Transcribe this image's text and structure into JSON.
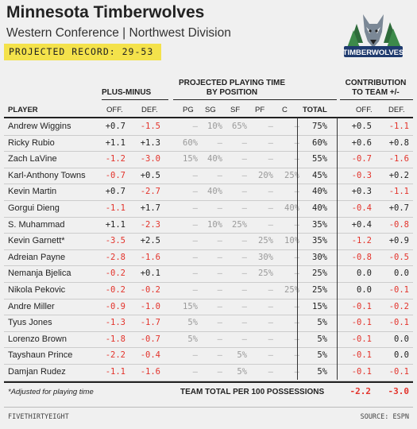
{
  "header": {
    "title": "Minnesota Timberwolves",
    "subtitle": "Western Conference | Northwest Division",
    "record": "PROJECTED RECORD: 29-53",
    "logo_text": "TIMBERWOLVES"
  },
  "groups": {
    "plus_minus": "PLUS-MINUS",
    "playing_time_1": "PROJECTED PLAYING TIME",
    "playing_time_2": "BY POSITION",
    "contribution_1": "CONTRIBUTION",
    "contribution_2": "TO TEAM +/-"
  },
  "columns": {
    "player": "PLAYER",
    "off": "OFF.",
    "def": "DEF.",
    "pg": "PG",
    "sg": "SG",
    "sf": "SF",
    "pf": "PF",
    "c": "C",
    "total": "TOTAL",
    "c_off": "OFF.",
    "c_def": "DEF."
  },
  "rows": [
    {
      "player": "Andrew Wiggins",
      "off": "+0.7",
      "def": "-1.5",
      "pg": "—",
      "sg": "10%",
      "sf": "65%",
      "pf": "—",
      "c": "—",
      "total": "75%",
      "c_off": "+0.5",
      "c_def": "-1.1"
    },
    {
      "player": "Ricky Rubio",
      "off": "+1.1",
      "def": "+1.3",
      "pg": "60%",
      "sg": "—",
      "sf": "—",
      "pf": "—",
      "c": "—",
      "total": "60%",
      "c_off": "+0.6",
      "c_def": "+0.8"
    },
    {
      "player": "Zach LaVine",
      "off": "-1.2",
      "def": "-3.0",
      "pg": "15%",
      "sg": "40%",
      "sf": "—",
      "pf": "—",
      "c": "—",
      "total": "55%",
      "c_off": "-0.7",
      "c_def": "-1.6"
    },
    {
      "player": "Karl-Anthony Towns",
      "off": "-0.7",
      "def": "+0.5",
      "pg": "—",
      "sg": "—",
      "sf": "—",
      "pf": "20%",
      "c": "25%",
      "total": "45%",
      "c_off": "-0.3",
      "c_def": "+0.2"
    },
    {
      "player": "Kevin Martin",
      "off": "+0.7",
      "def": "-2.7",
      "pg": "—",
      "sg": "40%",
      "sf": "—",
      "pf": "—",
      "c": "—",
      "total": "40%",
      "c_off": "+0.3",
      "c_def": "-1.1"
    },
    {
      "player": "Gorgui Dieng",
      "off": "-1.1",
      "def": "+1.7",
      "pg": "—",
      "sg": "—",
      "sf": "—",
      "pf": "—",
      "c": "40%",
      "total": "40%",
      "c_off": "-0.4",
      "c_def": "+0.7"
    },
    {
      "player": "S. Muhammad",
      "off": "+1.1",
      "def": "-2.3",
      "pg": "—",
      "sg": "10%",
      "sf": "25%",
      "pf": "—",
      "c": "—",
      "total": "35%",
      "c_off": "+0.4",
      "c_def": "-0.8"
    },
    {
      "player": "Kevin Garnett*",
      "off": "-3.5",
      "def": "+2.5",
      "pg": "—",
      "sg": "—",
      "sf": "—",
      "pf": "25%",
      "c": "10%",
      "total": "35%",
      "c_off": "-1.2",
      "c_def": "+0.9"
    },
    {
      "player": "Adreian Payne",
      "off": "-2.8",
      "def": "-1.6",
      "pg": "—",
      "sg": "—",
      "sf": "—",
      "pf": "30%",
      "c": "—",
      "total": "30%",
      "c_off": "-0.8",
      "c_def": "-0.5"
    },
    {
      "player": "Nemanja Bjelica",
      "off": "-0.2",
      "def": "+0.1",
      "pg": "—",
      "sg": "—",
      "sf": "—",
      "pf": "25%",
      "c": "—",
      "total": "25%",
      "c_off": "0.0",
      "c_def": "0.0"
    },
    {
      "player": "Nikola Pekovic",
      "off": "-0.2",
      "def": "-0.2",
      "pg": "—",
      "sg": "—",
      "sf": "—",
      "pf": "—",
      "c": "25%",
      "total": "25%",
      "c_off": "0.0",
      "c_def": "-0.1"
    },
    {
      "player": "Andre Miller",
      "off": "-0.9",
      "def": "-1.0",
      "pg": "15%",
      "sg": "—",
      "sf": "—",
      "pf": "—",
      "c": "—",
      "total": "15%",
      "c_off": "-0.1",
      "c_def": "-0.2"
    },
    {
      "player": "Tyus Jones",
      "off": "-1.3",
      "def": "-1.7",
      "pg": "5%",
      "sg": "—",
      "sf": "—",
      "pf": "—",
      "c": "—",
      "total": "5%",
      "c_off": "-0.1",
      "c_def": "-0.1"
    },
    {
      "player": "Lorenzo Brown",
      "off": "-1.8",
      "def": "-0.7",
      "pg": "5%",
      "sg": "—",
      "sf": "—",
      "pf": "—",
      "c": "—",
      "total": "5%",
      "c_off": "-0.1",
      "c_def": "0.0"
    },
    {
      "player": "Tayshaun Prince",
      "off": "-2.2",
      "def": "-0.4",
      "pg": "—",
      "sg": "—",
      "sf": "5%",
      "pf": "—",
      "c": "—",
      "total": "5%",
      "c_off": "-0.1",
      "c_def": "0.0"
    },
    {
      "player": "Damjan Rudez",
      "off": "-1.1",
      "def": "-1.6",
      "pg": "—",
      "sg": "—",
      "sf": "5%",
      "pf": "—",
      "c": "—",
      "total": "5%",
      "c_off": "-0.1",
      "c_def": "-0.1"
    }
  ],
  "footer": {
    "footnote": "*Adjusted for playing time",
    "team_total_label": "TEAM TOTAL PER 100 POSSESSIONS",
    "team_total_off": "-2.2",
    "team_total_def": "-3.0",
    "brand": "FIVETHIRTYEIGHT",
    "source": "SOURCE: ESPN"
  },
  "colors": {
    "highlight": "#f4e24b",
    "negative": "#e3332b",
    "dash": "#b3b3b3"
  }
}
